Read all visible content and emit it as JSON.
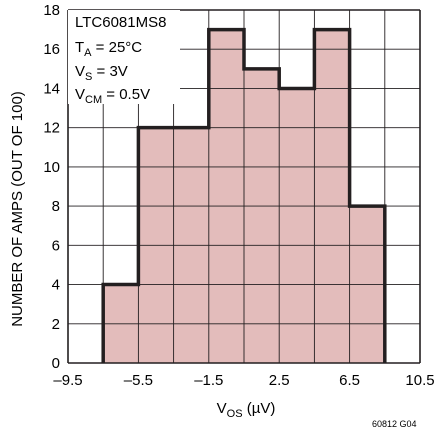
{
  "chart_data": {
    "type": "bar",
    "xlabel": {
      "main": "V",
      "sub": "OS",
      "unit": " (µV)"
    },
    "ylabel": "NUMBER OF AMPS (OUT OF 100)",
    "xlim": [
      -9.5,
      10.5
    ],
    "ylim": [
      0,
      18
    ],
    "grid": true,
    "x_ticks": [
      {
        "value": -9.5,
        "label": "–9.5"
      },
      {
        "value": -5.5,
        "label": "–5.5"
      },
      {
        "value": -1.5,
        "label": "–1.5"
      },
      {
        "value": 2.5,
        "label": "2.5"
      },
      {
        "value": 6.5,
        "label": "6.5"
      },
      {
        "value": 10.5,
        "label": "10.5"
      }
    ],
    "y_ticks": [
      0,
      2,
      4,
      6,
      8,
      10,
      12,
      14,
      16,
      18
    ],
    "bin_edges": [
      -7.5,
      -5.5,
      -3.5,
      -1.5,
      0.5,
      2.5,
      4.5,
      6.5,
      8.5
    ],
    "values": [
      4,
      12,
      12,
      17,
      15,
      14,
      17,
      8
    ],
    "annotation": {
      "title": "LTC6081MS8",
      "lines": [
        {
          "main": "T",
          "sub": "A",
          "rest": " = 25°C"
        },
        {
          "main": "V",
          "sub": "S",
          "rest": " = 3V"
        },
        {
          "main": "V",
          "sub": "CM",
          "rest": " = 0.5V"
        }
      ]
    },
    "figure_id": "60812 G04",
    "colors": {
      "fill": "#e3bcbb",
      "outline": "#231f20",
      "grid": "#231f20"
    }
  }
}
